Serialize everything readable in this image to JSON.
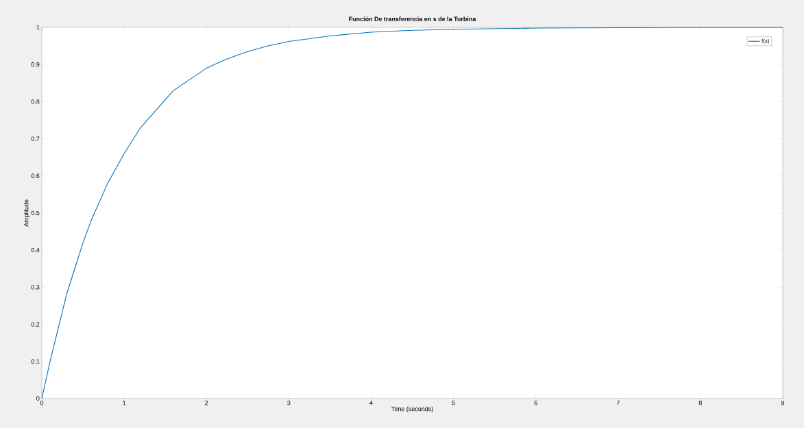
{
  "chart_data": {
    "type": "line",
    "title": "Función De transferencia en s de la Turbina",
    "xlabel": "Time (seconds)",
    "ylabel": "Amplitude",
    "x": [
      0,
      0.1,
      0.2,
      0.3,
      0.4,
      0.5,
      0.6,
      0.7,
      0.8,
      0.9,
      1.0,
      1.2,
      1.4,
      1.6,
      1.8,
      2.0,
      2.25,
      2.5,
      2.75,
      3.0,
      3.5,
      4.0,
      4.5,
      5.0,
      6.0,
      7.0,
      8.0,
      9.0
    ],
    "series": [
      {
        "name": "f(s)",
        "color": "#0072bd",
        "values": [
          0,
          0.1,
          0.19,
          0.28,
          0.35,
          0.42,
          0.48,
          0.53,
          0.58,
          0.62,
          0.66,
          0.73,
          0.78,
          0.83,
          0.86,
          0.89,
          0.915,
          0.935,
          0.95,
          0.962,
          0.977,
          0.987,
          0.992,
          0.995,
          0.998,
          0.999,
          1.0,
          1.0
        ]
      }
    ],
    "xlim": [
      0,
      9
    ],
    "xticks": [
      0,
      1,
      2,
      3,
      4,
      5,
      6,
      7,
      8,
      9
    ],
    "ylim": [
      0,
      1
    ],
    "yticks": [
      0,
      0.1,
      0.2,
      0.3,
      0.4,
      0.5,
      0.6,
      0.7,
      0.8,
      0.9,
      1
    ],
    "legend": "top right",
    "grid": false,
    "marker": "none",
    "line_style": "solid"
  }
}
